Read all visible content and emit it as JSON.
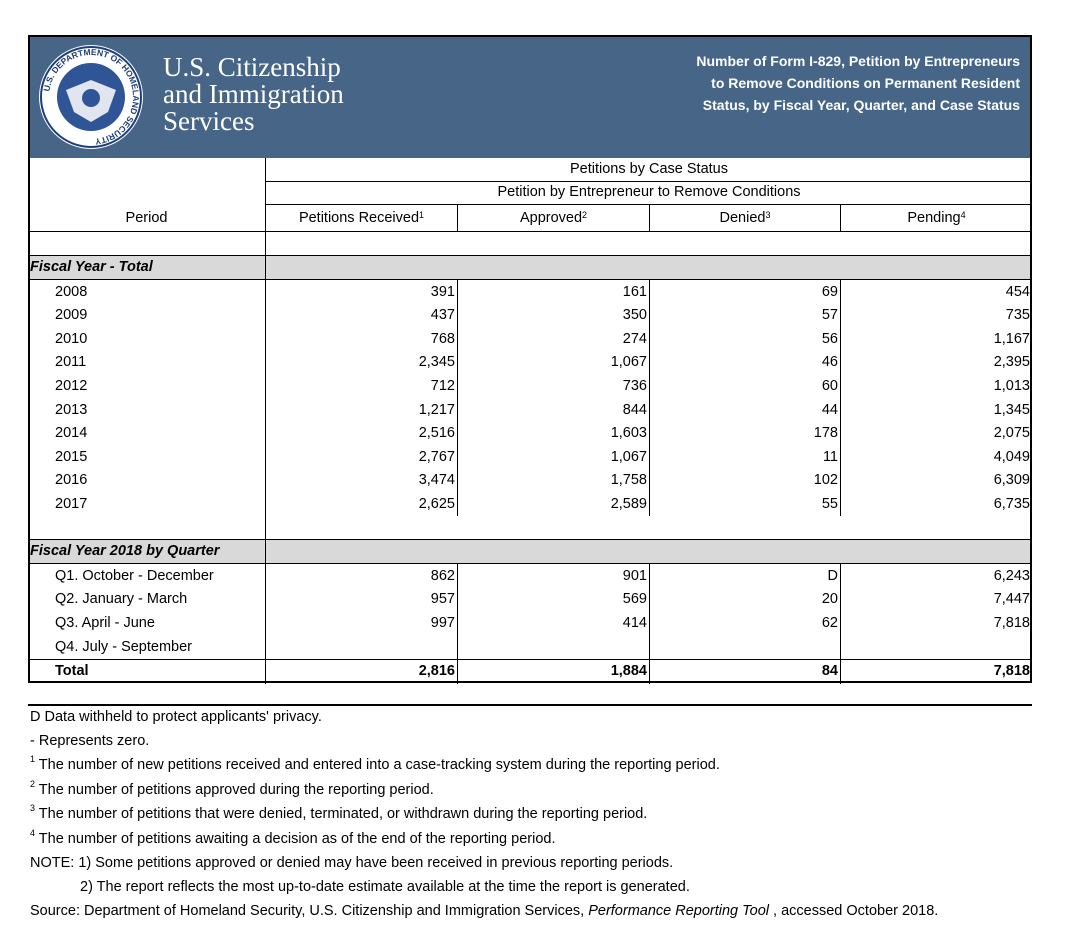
{
  "header": {
    "seal_text": "U.S. DEPARTMENT OF HOMELAND SECURITY",
    "agency_lines": [
      "U.S. Citizenship",
      "and Immigration",
      "Services"
    ],
    "title_lines": [
      "Number of Form I-829, Petition by Entrepreneurs",
      "to Remove Conditions on Permanent Resident",
      "Status, by Fiscal Year, Quarter, and Case Status"
    ]
  },
  "table": {
    "group_header": "Petitions by Case Status",
    "subgroup_header": "Petition by Entrepreneur to Remove Conditions",
    "period_header": "Period",
    "columns": [
      {
        "label": "Petitions Received",
        "sup": "1"
      },
      {
        "label": "Approved",
        "sup": "2"
      },
      {
        "label": "Denied",
        "sup": "3"
      },
      {
        "label": "Pending",
        "sup": "4"
      }
    ],
    "sections": [
      {
        "label": "Fiscal Year - Total",
        "rows": [
          [
            "2008",
            "391",
            "161",
            "69",
            "454"
          ],
          [
            "2009",
            "437",
            "350",
            "57",
            "735"
          ],
          [
            "2010",
            "768",
            "274",
            "56",
            "1,167"
          ],
          [
            "2011",
            "2,345",
            "1,067",
            "46",
            "2,395"
          ],
          [
            "2012",
            "712",
            "736",
            "60",
            "1,013"
          ],
          [
            "2013",
            "1,217",
            "844",
            "44",
            "1,345"
          ],
          [
            "2014",
            "2,516",
            "1,603",
            "178",
            "2,075"
          ],
          [
            "2015",
            "2,767",
            "1,067",
            "11",
            "4,049"
          ],
          [
            "2016",
            "3,474",
            "1,758",
            "102",
            "6,309"
          ],
          [
            "2017",
            "2,625",
            "2,589",
            "55",
            "6,735"
          ]
        ]
      },
      {
        "label": "Fiscal Year 2018 by Quarter",
        "rows": [
          [
            "Q1. October - December",
            "862",
            "901",
            "D",
            "6,243"
          ],
          [
            "Q2. January - March",
            "957",
            "569",
            "20",
            "7,447"
          ],
          [
            "Q3. April - June",
            "997",
            "414",
            "62",
            "7,818"
          ],
          [
            "Q4. July - September",
            null,
            null,
            null,
            null
          ]
        ]
      }
    ],
    "total": [
      "Total",
      "2,816",
      "1,884",
      "84",
      "7,818"
    ]
  },
  "footnotes": [
    {
      "mark": "D",
      "text": "Data withheld to protect applicants' privacy."
    },
    {
      "mark": "-",
      "text": "Represents zero."
    },
    {
      "mark": "1",
      "text": "The number of new petitions received and entered into a case-tracking system during the reporting period."
    },
    {
      "mark": "2",
      "text": "The number of petitions  approved during the reporting period."
    },
    {
      "mark": "3",
      "text": "The number of petitions that were denied, terminated, or withdrawn during the reporting period."
    },
    {
      "mark": "4",
      "text": "The number of petitions awaiting a decision as of the end of the reporting period."
    }
  ],
  "notes": [
    "NOTE:  1) Some petitions approved or denied may have been received in previous reporting periods.",
    "2) The report reflects the most up-to-date estimate available at the time the report is generated."
  ],
  "source": {
    "prefix": "Source:  Department of Homeland Security, U.S. Citizenship and Immigration Services, ",
    "italic": "Performance Reporting Tool",
    "suffix": " , accessed October 2018."
  }
}
